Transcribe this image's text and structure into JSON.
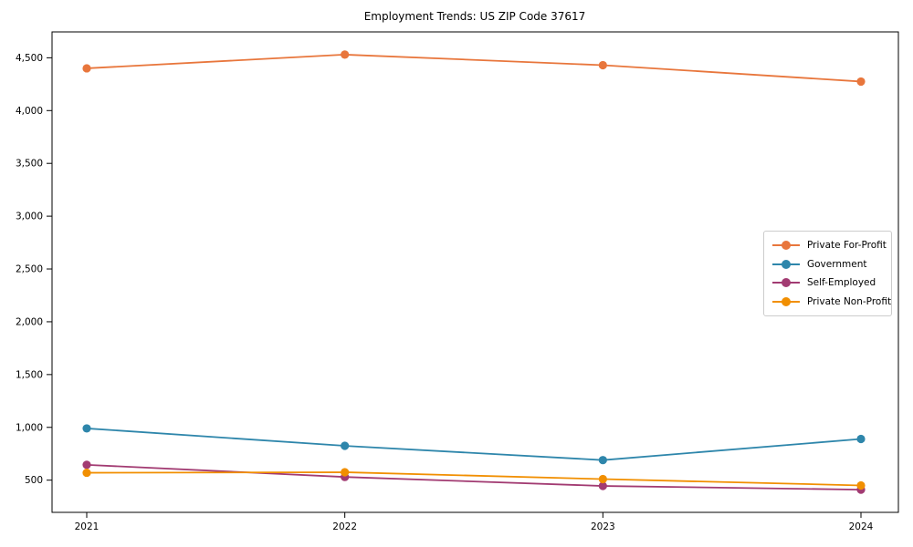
{
  "chart_data": {
    "type": "line",
    "title": "Employment Trends: US ZIP Code 37617",
    "xlabel": "",
    "ylabel": "",
    "x": [
      "2021",
      "2022",
      "2023",
      "2024"
    ],
    "series": [
      {
        "name": "Private For-Profit",
        "color": "#E8763C",
        "values": [
          4400,
          4530,
          4430,
          4275
        ]
      },
      {
        "name": "Government",
        "color": "#2E86AB",
        "values": [
          990,
          825,
          690,
          890
        ]
      },
      {
        "name": "Self-Employed",
        "color": "#A23B72",
        "values": [
          645,
          530,
          445,
          410
        ]
      },
      {
        "name": "Private Non-Profit",
        "color": "#F18F01",
        "values": [
          570,
          575,
          510,
          450
        ]
      }
    ],
    "yticks": [
      500,
      1000,
      1500,
      2000,
      2500,
      3000,
      3500,
      4000,
      4500
    ],
    "ytick_labels": [
      "500",
      "1,000",
      "1,500",
      "2,000",
      "2,500",
      "3,000",
      "3,500",
      "4,000",
      "4,500"
    ],
    "ylim": [
      195,
      4745
    ],
    "grid": false,
    "marker": "o",
    "legend_position": "center right",
    "plot_frame_color": "#000000",
    "legend_border_color": "#cccccc",
    "background_color": "#ffffff"
  }
}
